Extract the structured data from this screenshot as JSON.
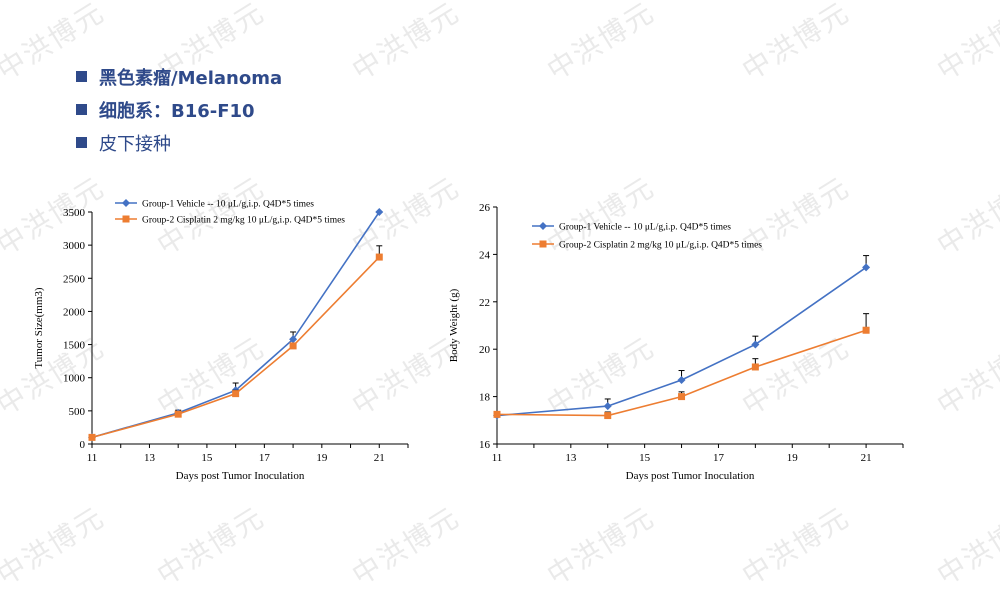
{
  "bullets": [
    {
      "text": "黑色素瘤/Melanoma"
    },
    {
      "text": "细胞系：B16-F10"
    },
    {
      "text": "皮下接种"
    }
  ],
  "watermark": {
    "text": "中洪博元"
  },
  "colors": {
    "bullet": "#2f4a8a",
    "vehicle": "#4472c4",
    "cisplatin": "#ed7d31",
    "axis": "#000000"
  },
  "chart_data": [
    {
      "type": "line",
      "xlabel": "Days post Tumor Inoculation",
      "ylabel": "Tumor Size(mm3)",
      "xlim": [
        11,
        22
      ],
      "ylim": [
        0,
        3500
      ],
      "xticks": [
        11,
        13,
        15,
        17,
        19,
        21
      ],
      "yticks": [
        0,
        500,
        1000,
        1500,
        2000,
        2500,
        3000,
        3500
      ],
      "legend": "top-left",
      "series": [
        {
          "name": "Group-1 Vehicle -- 10 μL/g,i.p. Q4D*5 times",
          "color": "#4472c4",
          "marker": "diamond",
          "x": [
            11,
            14,
            16,
            18,
            21
          ],
          "values": [
            100,
            470,
            810,
            1580,
            3500
          ],
          "err": [
            0,
            40,
            110,
            110,
            0
          ]
        },
        {
          "name": "Group-2 Cisplatin 2 mg/kg 10 μL/g,i.p. Q4D*5 times",
          "color": "#ed7d31",
          "marker": "square",
          "x": [
            11,
            14,
            16,
            18,
            21
          ],
          "values": [
            100,
            450,
            760,
            1480,
            2820
          ],
          "err": [
            0,
            30,
            50,
            0,
            170
          ]
        }
      ]
    },
    {
      "type": "line",
      "xlabel": "Days post Tumor Inoculation",
      "ylabel": "Body Weight (g)",
      "xlim": [
        11,
        22
      ],
      "ylim": [
        16,
        26
      ],
      "xticks": [
        11,
        13,
        15,
        17,
        19,
        21
      ],
      "yticks": [
        16,
        18,
        20,
        22,
        24,
        26
      ],
      "legend": "top-left",
      "series": [
        {
          "name": "Group-1 Vehicle -- 10 μL/g,i.p. Q4D*5 times",
          "color": "#4472c4",
          "marker": "diamond",
          "x": [
            11,
            14,
            16,
            18,
            21
          ],
          "values": [
            17.2,
            17.6,
            18.7,
            20.2,
            23.45
          ],
          "err": [
            0,
            0.3,
            0.4,
            0.35,
            0.5
          ]
        },
        {
          "name": "Group-2 Cisplatin 2 mg/kg 10 μL/g,i.p. Q4D*5 times",
          "color": "#ed7d31",
          "marker": "square",
          "x": [
            11,
            14,
            16,
            18,
            21
          ],
          "values": [
            17.25,
            17.2,
            18.0,
            19.25,
            20.8
          ],
          "err": [
            0,
            0.15,
            0.2,
            0.35,
            0.7
          ]
        }
      ]
    }
  ]
}
